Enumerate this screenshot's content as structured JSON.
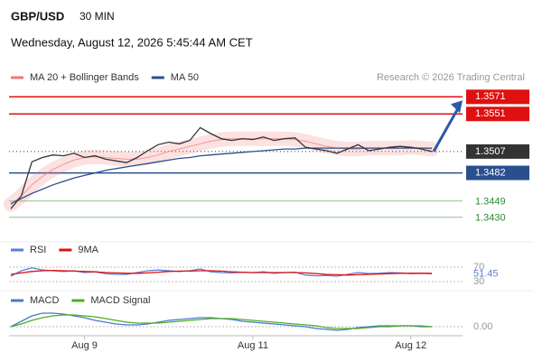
{
  "header": {
    "symbol": "GBP/USD",
    "interval": "30 MIN",
    "datetime": "Wednesday, August 12, 2026 5:45:44 AM CET",
    "credit": "Research © 2026 Trading Central"
  },
  "chart_data": [
    {
      "type": "line",
      "legend": "top-left",
      "categories": [
        null,
        null,
        null,
        null,
        null,
        null,
        null,
        "Aug 9",
        null,
        null,
        null,
        null,
        null,
        null,
        null,
        null,
        null,
        null,
        null,
        null,
        null,
        null,
        null,
        "Aug 11",
        null,
        null,
        null,
        null,
        null,
        null,
        null,
        null,
        null,
        null,
        null,
        null,
        null,
        null,
        "Aug 12",
        null,
        null
      ],
      "ylim": [
        1.3415,
        1.3584
      ],
      "series": [
        {
          "name": "MA 20 + Bollinger Bands",
          "color": "#f07878",
          "band": true,
          "values": [
            1.3445,
            1.3455,
            1.3468,
            1.3478,
            1.3486,
            1.3492,
            1.3497,
            1.35,
            1.3501,
            1.35,
            1.3499,
            1.3498,
            1.3498,
            1.35,
            1.3503,
            1.3507,
            1.351,
            1.3513,
            1.3516,
            1.3519,
            1.3521,
            1.3522,
            1.3522,
            1.3522,
            1.3522,
            1.3522,
            1.3522,
            1.3521,
            1.3519,
            1.3516,
            1.3513,
            1.3511,
            1.351,
            1.351,
            1.3511,
            1.3511,
            1.3511,
            1.3511,
            1.3512,
            1.3511,
            1.351
          ]
        },
        {
          "name": "MA 50",
          "color": "#2a4f8f",
          "values": [
            1.3446,
            1.3452,
            1.3458,
            1.3463,
            1.3468,
            1.3472,
            1.3476,
            1.3479,
            1.3482,
            1.3485,
            1.3487,
            1.3489,
            1.3491,
            1.3493,
            1.3495,
            1.3497,
            1.3499,
            1.35,
            1.3502,
            1.3503,
            1.3504,
            1.3505,
            1.3506,
            1.3507,
            1.3508,
            1.3509,
            1.351,
            1.351,
            1.3511,
            1.3511,
            1.3511,
            1.3511,
            1.3511,
            1.3511,
            1.3511,
            1.3511,
            1.3511,
            1.3511,
            1.3511,
            1.3511,
            1.3511
          ]
        },
        {
          "color": "#333333",
          "values": [
            1.344,
            1.3455,
            1.3495,
            1.35,
            1.3503,
            1.3502,
            1.3505,
            1.35,
            1.3502,
            1.3498,
            1.3496,
            1.3494,
            1.35,
            1.3508,
            1.3515,
            1.3518,
            1.3516,
            1.352,
            1.3535,
            1.3528,
            1.3522,
            1.352,
            1.3522,
            1.3521,
            1.3524,
            1.352,
            1.3522,
            1.3523,
            1.3512,
            1.351,
            1.3508,
            1.3505,
            1.351,
            1.3515,
            1.3508,
            1.351,
            1.3512,
            1.3513,
            1.3512,
            1.351,
            1.3507
          ]
        }
      ],
      "levels": [
        {
          "value": 1.3571,
          "color": "#e01010",
          "label_style": "box"
        },
        {
          "value": 1.3551,
          "color": "#e01010",
          "label_style": "box"
        },
        {
          "value": 1.3507,
          "color": "#333333",
          "label_style": "box",
          "line_style": "dotted"
        },
        {
          "value": 1.3482,
          "color": "#2a4f8f",
          "label_style": "box"
        },
        {
          "value": 1.3449,
          "color": "#2e8b2e",
          "label_style": "text"
        },
        {
          "value": 1.343,
          "label": "1.3430",
          "color": "#2e8b2e",
          "label_style": "text"
        }
      ]
    },
    {
      "type": "line",
      "ylim": [
        20,
        90
      ],
      "yticks": [
        30,
        70
      ],
      "series": [
        {
          "name": "RSI",
          "color": "#5b7fd6",
          "values": [
            45,
            60,
            68,
            62,
            60,
            58,
            60,
            55,
            57,
            52,
            50,
            50,
            55,
            60,
            62,
            60,
            58,
            60,
            65,
            57,
            55,
            54,
            56,
            55,
            57,
            53,
            55,
            56,
            48,
            46,
            47,
            45,
            50,
            55,
            52,
            53,
            55,
            54,
            52,
            53,
            51.45
          ]
        },
        {
          "name": "9MA",
          "color": "#e01010",
          "values": [
            50,
            54,
            58,
            60,
            61,
            60,
            59,
            58,
            57,
            55,
            54,
            53,
            53,
            54,
            56,
            58,
            59,
            59,
            60,
            60,
            59,
            57,
            56,
            55,
            55,
            55,
            55,
            55,
            54,
            52,
            50,
            49,
            48,
            49,
            50,
            51,
            52,
            53,
            53,
            53,
            53
          ]
        }
      ]
    },
    {
      "type": "line",
      "ylim": [
        -0.001,
        0.0022
      ],
      "yticks": [
        {
          "value": 0,
          "label": "0.00"
        }
      ],
      "series": [
        {
          "name": "MACD",
          "color": "#4a78d0",
          "values": [
            0,
            0.0006,
            0.0012,
            0.0015,
            0.0015,
            0.0014,
            0.0012,
            0.001,
            0.0007,
            0.0005,
            0.0003,
            0.0002,
            0.0002,
            0.0003,
            0.0005,
            0.0007,
            0.0008,
            0.0009,
            0.001,
            0.001,
            0.0009,
            0.0008,
            0.0006,
            0.0005,
            0.0004,
            0.0003,
            0.0002,
            0.0001,
            0,
            -0.0002,
            -0.0003,
            -0.0004,
            -0.0003,
            -0.0001,
            0,
            0.0001,
            0.0001,
            0.0001,
            0.0001,
            0,
            0
          ]
        },
        {
          "name": "MACD Signal",
          "color": "#4caf20",
          "values": [
            0,
            0.0003,
            0.0007,
            0.001,
            0.0012,
            0.0013,
            0.0013,
            0.0012,
            0.0011,
            0.0009,
            0.0007,
            0.0005,
            0.0004,
            0.0004,
            0.0004,
            0.0005,
            0.0006,
            0.0007,
            0.0008,
            0.0009,
            0.0009,
            0.0009,
            0.0008,
            0.0007,
            0.0006,
            0.0005,
            0.0004,
            0.0003,
            0.0002,
            0.0001,
            -0.0001,
            -0.0002,
            -0.0002,
            -0.0002,
            -0.0001,
            0,
            0,
            0.0001,
            0.0001,
            0.0001,
            0
          ]
        }
      ]
    }
  ]
}
